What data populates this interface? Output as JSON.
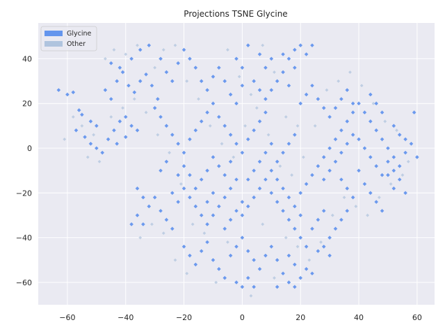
{
  "chart_data": {
    "type": "scatter",
    "title": "Projections TSNE Glycine",
    "xlabel": "",
    "ylabel": "",
    "xlim": [
      -70,
      66
    ],
    "ylim": [
      -70,
      56
    ],
    "xticks": [
      -60,
      -40,
      -20,
      0,
      20,
      40,
      60
    ],
    "yticks": [
      -60,
      -40,
      -20,
      0,
      20,
      40
    ],
    "xtick_labels": [
      "−60",
      "−40",
      "−20",
      "0",
      "20",
      "40",
      "60"
    ],
    "ytick_labels": [
      "−60",
      "−40",
      "−20",
      "0",
      "20",
      "40"
    ],
    "grid": true,
    "legend_position": "top-left",
    "background": "#eaeaf2",
    "series": [
      {
        "name": "Glycine",
        "color": "#6495ed",
        "marker": "diamond",
        "points": [
          [
            -63,
            26
          ],
          [
            -60,
            24
          ],
          [
            -58,
            25
          ],
          [
            -56,
            17
          ],
          [
            -55,
            15
          ],
          [
            -52,
            12
          ],
          [
            -50,
            10
          ],
          [
            -57,
            8
          ],
          [
            -54,
            5
          ],
          [
            -52,
            2
          ],
          [
            -50,
            0
          ],
          [
            -48,
            -2
          ],
          [
            -46,
            4
          ],
          [
            -44,
            8
          ],
          [
            -42,
            12
          ],
          [
            -40,
            14
          ],
          [
            -38,
            10
          ],
          [
            -36,
            8
          ],
          [
            -40,
            5
          ],
          [
            -43,
            2
          ],
          [
            -47,
            26
          ],
          [
            -45,
            22
          ],
          [
            -43,
            30
          ],
          [
            -41,
            34
          ],
          [
            -39,
            28
          ],
          [
            -37,
            25
          ],
          [
            -35,
            30
          ],
          [
            -33,
            33
          ],
          [
            -31,
            28
          ],
          [
            -29,
            22
          ],
          [
            -45,
            38
          ],
          [
            -42,
            36
          ],
          [
            -38,
            40
          ],
          [
            -35,
            44
          ],
          [
            -32,
            46
          ],
          [
            -28,
            40
          ],
          [
            -26,
            34
          ],
          [
            -24,
            30
          ],
          [
            -22,
            38
          ],
          [
            -20,
            44
          ],
          [
            -18,
            40
          ],
          [
            -16,
            36
          ],
          [
            -14,
            30
          ],
          [
            -12,
            26
          ],
          [
            -10,
            32
          ],
          [
            -8,
            36
          ],
          [
            -6,
            30
          ],
          [
            -4,
            24
          ],
          [
            -2,
            20
          ],
          [
            0,
            28
          ],
          [
            -30,
            18
          ],
          [
            -28,
            14
          ],
          [
            -26,
            10
          ],
          [
            -24,
            6
          ],
          [
            -22,
            2
          ],
          [
            -20,
            -2
          ],
          [
            -18,
            4
          ],
          [
            -16,
            8
          ],
          [
            -14,
            12
          ],
          [
            -12,
            16
          ],
          [
            -10,
            20
          ],
          [
            -8,
            14
          ],
          [
            -6,
            10
          ],
          [
            -4,
            6
          ],
          [
            -2,
            2
          ],
          [
            0,
            -2
          ],
          [
            2,
            4
          ],
          [
            4,
            8
          ],
          [
            6,
            12
          ],
          [
            8,
            16
          ],
          [
            -26,
            -6
          ],
          [
            -28,
            -10
          ],
          [
            -24,
            -20
          ],
          [
            -22,
            -24
          ],
          [
            -20,
            -18
          ],
          [
            -18,
            -22
          ],
          [
            -16,
            -26
          ],
          [
            -14,
            -30
          ],
          [
            -12,
            -24
          ],
          [
            -10,
            -20
          ],
          [
            -36,
            -30
          ],
          [
            -34,
            -34
          ],
          [
            -32,
            -26
          ],
          [
            -30,
            -22
          ],
          [
            -28,
            -28
          ],
          [
            -26,
            -32
          ],
          [
            -24,
            -36
          ],
          [
            -36,
            -18
          ],
          [
            -34,
            -22
          ],
          [
            -38,
            -34
          ],
          [
            -20,
            -44
          ],
          [
            -18,
            -48
          ],
          [
            -16,
            -52
          ],
          [
            -14,
            -46
          ],
          [
            -12,
            -42
          ],
          [
            -10,
            -50
          ],
          [
            -8,
            -54
          ],
          [
            -6,
            -58
          ],
          [
            -4,
            -48
          ],
          [
            -2,
            -44
          ],
          [
            0,
            -40
          ],
          [
            2,
            -46
          ],
          [
            4,
            -50
          ],
          [
            6,
            -54
          ],
          [
            8,
            -48
          ],
          [
            10,
            -44
          ],
          [
            12,
            -50
          ],
          [
            14,
            -56
          ],
          [
            16,
            -60
          ],
          [
            18,
            -62
          ],
          [
            0,
            -62
          ],
          [
            2,
            -58
          ],
          [
            -2,
            -60
          ],
          [
            4,
            -62
          ],
          [
            12,
            -62
          ],
          [
            20,
            -58
          ],
          [
            22,
            -54
          ],
          [
            24,
            -56
          ],
          [
            18,
            -52
          ],
          [
            16,
            -48
          ],
          [
            0,
            -30
          ],
          [
            2,
            -26
          ],
          [
            4,
            -22
          ],
          [
            6,
            -18
          ],
          [
            8,
            -14
          ],
          [
            10,
            -10
          ],
          [
            12,
            -6
          ],
          [
            14,
            -2
          ],
          [
            16,
            2
          ],
          [
            18,
            6
          ],
          [
            -2,
            -14
          ],
          [
            -4,
            -18
          ],
          [
            -6,
            -22
          ],
          [
            -8,
            -26
          ],
          [
            -10,
            -30
          ],
          [
            -12,
            -34
          ],
          [
            -6,
            -36
          ],
          [
            -4,
            -32
          ],
          [
            -2,
            -28
          ],
          [
            0,
            -24
          ],
          [
            10,
            -20
          ],
          [
            12,
            -24
          ],
          [
            14,
            -28
          ],
          [
            16,
            -32
          ],
          [
            18,
            -36
          ],
          [
            20,
            -40
          ],
          [
            22,
            -44
          ],
          [
            24,
            -36
          ],
          [
            26,
            -32
          ],
          [
            28,
            -28
          ],
          [
            20,
            -20
          ],
          [
            22,
            -16
          ],
          [
            24,
            -12
          ],
          [
            26,
            -8
          ],
          [
            28,
            -4
          ],
          [
            30,
            0
          ],
          [
            32,
            4
          ],
          [
            34,
            8
          ],
          [
            36,
            12
          ],
          [
            38,
            16
          ],
          [
            20,
            20
          ],
          [
            22,
            24
          ],
          [
            24,
            28
          ],
          [
            26,
            22
          ],
          [
            28,
            18
          ],
          [
            30,
            14
          ],
          [
            32,
            18
          ],
          [
            34,
            22
          ],
          [
            36,
            26
          ],
          [
            38,
            20
          ],
          [
            16,
            40
          ],
          [
            18,
            44
          ],
          [
            20,
            46
          ],
          [
            22,
            42
          ],
          [
            24,
            46
          ],
          [
            18,
            36
          ],
          [
            14,
            42
          ],
          [
            10,
            40
          ],
          [
            8,
            36
          ],
          [
            6,
            42
          ],
          [
            2,
            46
          ],
          [
            0,
            36
          ],
          [
            -2,
            40
          ],
          [
            4,
            30
          ],
          [
            6,
            26
          ],
          [
            8,
            22
          ],
          [
            10,
            26
          ],
          [
            12,
            30
          ],
          [
            14,
            34
          ],
          [
            16,
            28
          ],
          [
            40,
            20
          ],
          [
            42,
            16
          ],
          [
            44,
            12
          ],
          [
            46,
            8
          ],
          [
            48,
            4
          ],
          [
            50,
            0
          ],
          [
            52,
            -4
          ],
          [
            54,
            -8
          ],
          [
            56,
            -2
          ],
          [
            58,
            2
          ],
          [
            40,
            4
          ],
          [
            42,
            0
          ],
          [
            44,
            -4
          ],
          [
            46,
            -8
          ],
          [
            48,
            -12
          ],
          [
            42,
            -16
          ],
          [
            44,
            -20
          ],
          [
            46,
            -24
          ],
          [
            48,
            -28
          ],
          [
            40,
            -10
          ],
          [
            34,
            -14
          ],
          [
            36,
            -18
          ],
          [
            38,
            -22
          ],
          [
            36,
            -28
          ],
          [
            34,
            -32
          ],
          [
            32,
            -36
          ],
          [
            30,
            -40
          ],
          [
            28,
            -44
          ],
          [
            30,
            -48
          ],
          [
            26,
            -46
          ],
          [
            52,
            -18
          ],
          [
            54,
            -14
          ],
          [
            56,
            -20
          ],
          [
            50,
            -12
          ],
          [
            52,
            10
          ],
          [
            54,
            6
          ],
          [
            56,
            4
          ],
          [
            48,
            16
          ],
          [
            46,
            20
          ],
          [
            44,
            24
          ],
          [
            59,
            16
          ],
          [
            60,
            -4
          ],
          [
            52,
            -10
          ],
          [
            50,
            -6
          ],
          [
            38,
            6
          ],
          [
            36,
            2
          ],
          [
            34,
            -2
          ],
          [
            32,
            -6
          ],
          [
            30,
            -10
          ],
          [
            28,
            -14
          ],
          [
            -12,
            -10
          ],
          [
            -14,
            -14
          ],
          [
            -16,
            -18
          ],
          [
            -18,
            -12
          ],
          [
            -20,
            -8
          ],
          [
            -22,
            -12
          ],
          [
            -10,
            -4
          ],
          [
            -8,
            -8
          ],
          [
            -6,
            -12
          ],
          [
            -4,
            -6
          ],
          [
            6,
            -6
          ],
          [
            8,
            -2
          ],
          [
            10,
            2
          ],
          [
            4,
            -10
          ],
          [
            2,
            -14
          ],
          [
            12,
            -14
          ],
          [
            14,
            -18
          ],
          [
            16,
            -22
          ],
          [
            18,
            -26
          ],
          [
            20,
            -30
          ]
        ]
      },
      {
        "name": "Other",
        "color": "#b0c4de",
        "marker": "diamond",
        "points": [
          [
            -58,
            14
          ],
          [
            -55,
            10
          ],
          [
            -51,
            6
          ],
          [
            -47,
            40
          ],
          [
            -44,
            44
          ],
          [
            -40,
            42
          ],
          [
            -36,
            46
          ],
          [
            -30,
            36
          ],
          [
            -27,
            44
          ],
          [
            -23,
            46
          ],
          [
            -19,
            30
          ],
          [
            -15,
            22
          ],
          [
            -11,
            10
          ],
          [
            -7,
            2
          ],
          [
            -3,
            -4
          ],
          [
            1,
            10
          ],
          [
            5,
            18
          ],
          [
            9,
            6
          ],
          [
            13,
            -8
          ],
          [
            17,
            -12
          ],
          [
            21,
            -4
          ],
          [
            25,
            10
          ],
          [
            29,
            26
          ],
          [
            33,
            30
          ],
          [
            37,
            34
          ],
          [
            41,
            28
          ],
          [
            45,
            20
          ],
          [
            49,
            12
          ],
          [
            53,
            8
          ],
          [
            57,
            -6
          ],
          [
            -35,
            -40
          ],
          [
            -31,
            -34
          ],
          [
            -27,
            -38
          ],
          [
            -23,
            -50
          ],
          [
            -19,
            -56
          ],
          [
            -9,
            -60
          ],
          [
            3,
            -66
          ],
          [
            11,
            -58
          ],
          [
            23,
            -50
          ],
          [
            27,
            -42
          ],
          [
            31,
            -30
          ],
          [
            35,
            -22
          ],
          [
            39,
            -26
          ],
          [
            43,
            -30
          ],
          [
            47,
            -22
          ],
          [
            51,
            -16
          ],
          [
            55,
            -12
          ],
          [
            -61,
            4
          ],
          [
            -53,
            -4
          ],
          [
            -49,
            -6
          ],
          [
            -45,
            14
          ],
          [
            -41,
            18
          ],
          [
            -37,
            22
          ],
          [
            -33,
            16
          ],
          [
            -29,
            6
          ],
          [
            -25,
            -2
          ],
          [
            -21,
            -16
          ],
          [
            -17,
            -34
          ],
          [
            -13,
            -38
          ],
          [
            -5,
            -42
          ],
          [
            7,
            -34
          ],
          [
            15,
            -40
          ],
          [
            19,
            -44
          ],
          [
            3,
            24
          ],
          [
            -1,
            32
          ],
          [
            -5,
            44
          ],
          [
            7,
            46
          ],
          [
            11,
            34
          ],
          [
            15,
            14
          ],
          [
            19,
            10
          ]
        ]
      }
    ]
  }
}
